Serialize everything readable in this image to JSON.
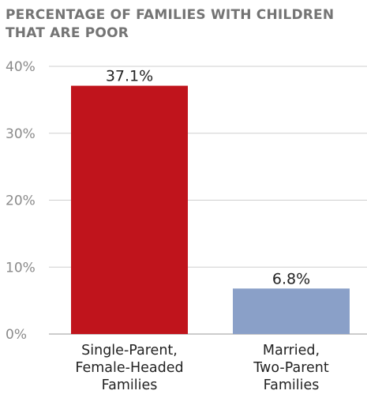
{
  "chart_data": {
    "type": "bar",
    "title": "PERCENTAGE OF FAMILIES WITH CHILDREN THAT ARE POOR",
    "categories": [
      [
        "Single-Parent,",
        "Female-Headed",
        "Families"
      ],
      [
        "Married,",
        "Two-Parent",
        "Families"
      ]
    ],
    "values": [
      37.1,
      6.8
    ],
    "value_labels": [
      "37.1%",
      "6.8%"
    ],
    "colors": [
      "#c0141c",
      "#8aa0c8"
    ],
    "ylim": [
      0,
      40
    ],
    "yticks": [
      0,
      10,
      20,
      30,
      40
    ],
    "ytick_labels": [
      "0%",
      "10%",
      "20%",
      "30%",
      "40%"
    ],
    "grid": true,
    "xlabel": "",
    "ylabel": ""
  }
}
